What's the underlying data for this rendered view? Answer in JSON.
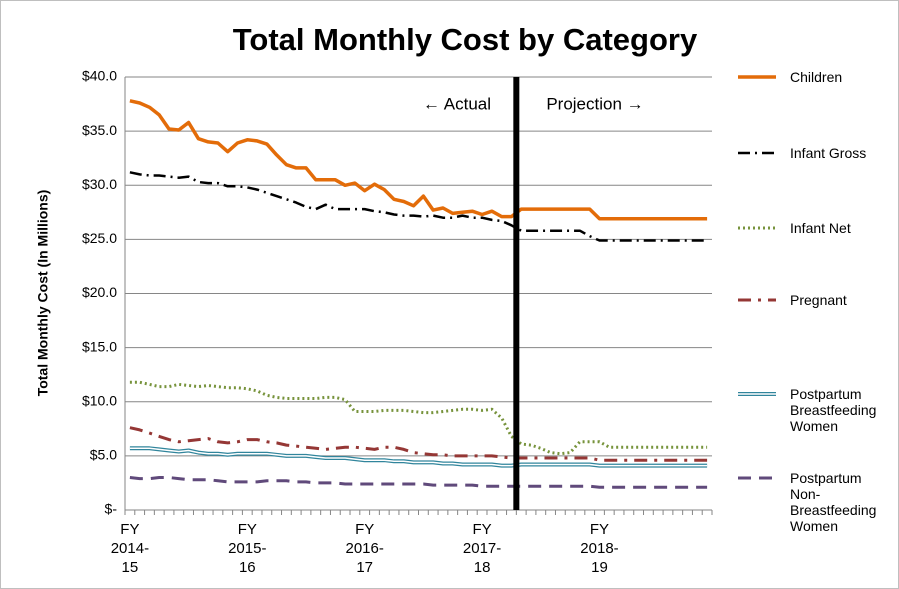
{
  "chart_data": {
    "type": "line",
    "title": "Total Monthly Cost by Category",
    "y_label": "Total Monthly Cost (In Millions)",
    "annotations": [
      "← Actual",
      "Projection →"
    ],
    "divider_at_index": 40,
    "categories": [
      "FY 2014-15",
      null,
      null,
      null,
      null,
      null,
      null,
      null,
      null,
      null,
      null,
      null,
      "FY 2015-16",
      null,
      null,
      null,
      null,
      null,
      null,
      null,
      null,
      null,
      null,
      null,
      "FY 2016-17",
      null,
      null,
      null,
      null,
      null,
      null,
      null,
      null,
      null,
      null,
      null,
      "FY 2017-18",
      null,
      null,
      null,
      null,
      null,
      null,
      null,
      null,
      null,
      null,
      null,
      "FY 2018-19",
      null,
      null,
      null,
      null,
      null,
      null,
      null,
      null,
      null,
      null,
      null
    ],
    "ylim": [
      0,
      40
    ],
    "yticks": [
      {
        "value": 0,
        "label": "$-"
      },
      {
        "value": 5,
        "label": "$5.0"
      },
      {
        "value": 10,
        "label": "$10.0"
      },
      {
        "value": 15,
        "label": "$15.0"
      },
      {
        "value": 20,
        "label": "$20.0"
      },
      {
        "value": 25,
        "label": "$25.0"
      },
      {
        "value": 30,
        "label": "$30.0"
      },
      {
        "value": 35,
        "label": "$35.0"
      },
      {
        "value": 40,
        "label": "$40.0"
      }
    ],
    "grid": true,
    "legend": "right",
    "series": [
      {
        "name": "Children",
        "color": "#e36c09",
        "style": "solid",
        "values": [
          37.8,
          37.6,
          37.2,
          36.5,
          35.2,
          35.1,
          35.8,
          34.3,
          34.0,
          33.9,
          33.1,
          33.9,
          34.2,
          34.1,
          33.8,
          32.8,
          31.9,
          31.6,
          31.6,
          30.5,
          30.5,
          30.5,
          30.0,
          30.2,
          29.5,
          30.1,
          29.6,
          28.7,
          28.5,
          28.1,
          29.0,
          27.7,
          27.9,
          27.4,
          27.5,
          27.6,
          27.3,
          27.6,
          27.1,
          27.1,
          27.8,
          27.8,
          27.8,
          27.8,
          27.8,
          27.8,
          27.8,
          27.8,
          26.9,
          26.9,
          26.9,
          26.9,
          26.9,
          26.9,
          26.9,
          26.9,
          26.9,
          26.9,
          26.9,
          26.9
        ]
      },
      {
        "name": "Infant Gross",
        "color": "#000000",
        "style": "dash-dot",
        "values": [
          31.2,
          31.0,
          30.9,
          30.9,
          30.8,
          30.7,
          30.8,
          30.3,
          30.2,
          30.2,
          29.9,
          29.9,
          29.8,
          29.6,
          29.3,
          29.0,
          28.7,
          28.4,
          28.0,
          27.8,
          28.2,
          27.8,
          27.8,
          27.8,
          27.8,
          27.6,
          27.5,
          27.3,
          27.2,
          27.2,
          27.1,
          27.2,
          27.0,
          27.0,
          27.2,
          27.0,
          27.0,
          26.8,
          26.7,
          26.3,
          25.8,
          25.8,
          25.8,
          25.8,
          25.8,
          25.8,
          25.8,
          25.3,
          24.9,
          24.9,
          24.9,
          24.9,
          24.9,
          24.9,
          24.9,
          24.9,
          24.9,
          24.9,
          24.9,
          24.9
        ]
      },
      {
        "name": "Infant Net",
        "color": "#77933c",
        "style": "dot",
        "values": [
          11.8,
          11.8,
          11.6,
          11.4,
          11.4,
          11.6,
          11.5,
          11.4,
          11.5,
          11.4,
          11.3,
          11.3,
          11.2,
          11.0,
          10.6,
          10.4,
          10.3,
          10.3,
          10.3,
          10.3,
          10.4,
          10.4,
          10.2,
          9.1,
          9.1,
          9.1,
          9.2,
          9.2,
          9.2,
          9.1,
          9.0,
          9.0,
          9.1,
          9.2,
          9.3,
          9.3,
          9.2,
          9.3,
          8.5,
          6.8,
          6.1,
          6.0,
          5.7,
          5.3,
          5.2,
          5.3,
          6.3,
          6.3,
          6.3,
          5.8,
          5.8,
          5.8,
          5.8,
          5.8,
          5.8,
          5.8,
          5.8,
          5.8,
          5.8,
          5.8
        ]
      },
      {
        "name": "Pregnant",
        "color": "#953735",
        "style": "long-dash-dot",
        "values": [
          7.6,
          7.4,
          7.1,
          6.8,
          6.5,
          6.3,
          6.4,
          6.5,
          6.6,
          6.3,
          6.2,
          6.3,
          6.5,
          6.5,
          6.3,
          6.2,
          6.0,
          5.9,
          5.8,
          5.7,
          5.6,
          5.7,
          5.8,
          5.8,
          5.7,
          5.6,
          5.8,
          5.8,
          5.6,
          5.3,
          5.2,
          5.1,
          5.1,
          5.0,
          5.0,
          5.0,
          5.0,
          5.0,
          4.9,
          4.8,
          4.8,
          4.8,
          4.8,
          4.8,
          4.8,
          4.8,
          4.8,
          4.8,
          4.6,
          4.6,
          4.6,
          4.6,
          4.6,
          4.6,
          4.6,
          4.6,
          4.6,
          4.6,
          4.6,
          4.6
        ]
      },
      {
        "name": "Postpartum Breastfeeding Women",
        "color": "#31859c",
        "style": "double",
        "values": [
          5.7,
          5.7,
          5.7,
          5.6,
          5.5,
          5.4,
          5.5,
          5.3,
          5.2,
          5.2,
          5.1,
          5.2,
          5.2,
          5.2,
          5.2,
          5.1,
          5.0,
          5.0,
          5.0,
          4.9,
          4.8,
          4.8,
          4.8,
          4.7,
          4.6,
          4.6,
          4.6,
          4.5,
          4.5,
          4.4,
          4.4,
          4.4,
          4.3,
          4.3,
          4.2,
          4.2,
          4.2,
          4.2,
          4.1,
          4.1,
          4.2,
          4.2,
          4.2,
          4.2,
          4.2,
          4.2,
          4.2,
          4.2,
          4.1,
          4.1,
          4.1,
          4.1,
          4.1,
          4.1,
          4.1,
          4.1,
          4.1,
          4.1,
          4.1,
          4.1
        ]
      },
      {
        "name": "Postpartum Non-Breastfeeding Women",
        "color": "#604a7b",
        "style": "dash",
        "values": [
          3.0,
          2.9,
          2.9,
          3.0,
          3.0,
          2.9,
          2.8,
          2.8,
          2.8,
          2.7,
          2.6,
          2.6,
          2.6,
          2.6,
          2.7,
          2.7,
          2.7,
          2.6,
          2.6,
          2.5,
          2.5,
          2.5,
          2.4,
          2.4,
          2.4,
          2.4,
          2.4,
          2.4,
          2.4,
          2.4,
          2.4,
          2.3,
          2.3,
          2.3,
          2.3,
          2.3,
          2.2,
          2.2,
          2.2,
          2.2,
          2.2,
          2.2,
          2.2,
          2.2,
          2.2,
          2.2,
          2.2,
          2.2,
          2.1,
          2.1,
          2.1,
          2.1,
          2.1,
          2.1,
          2.1,
          2.1,
          2.1,
          2.1,
          2.1,
          2.1
        ]
      }
    ]
  }
}
